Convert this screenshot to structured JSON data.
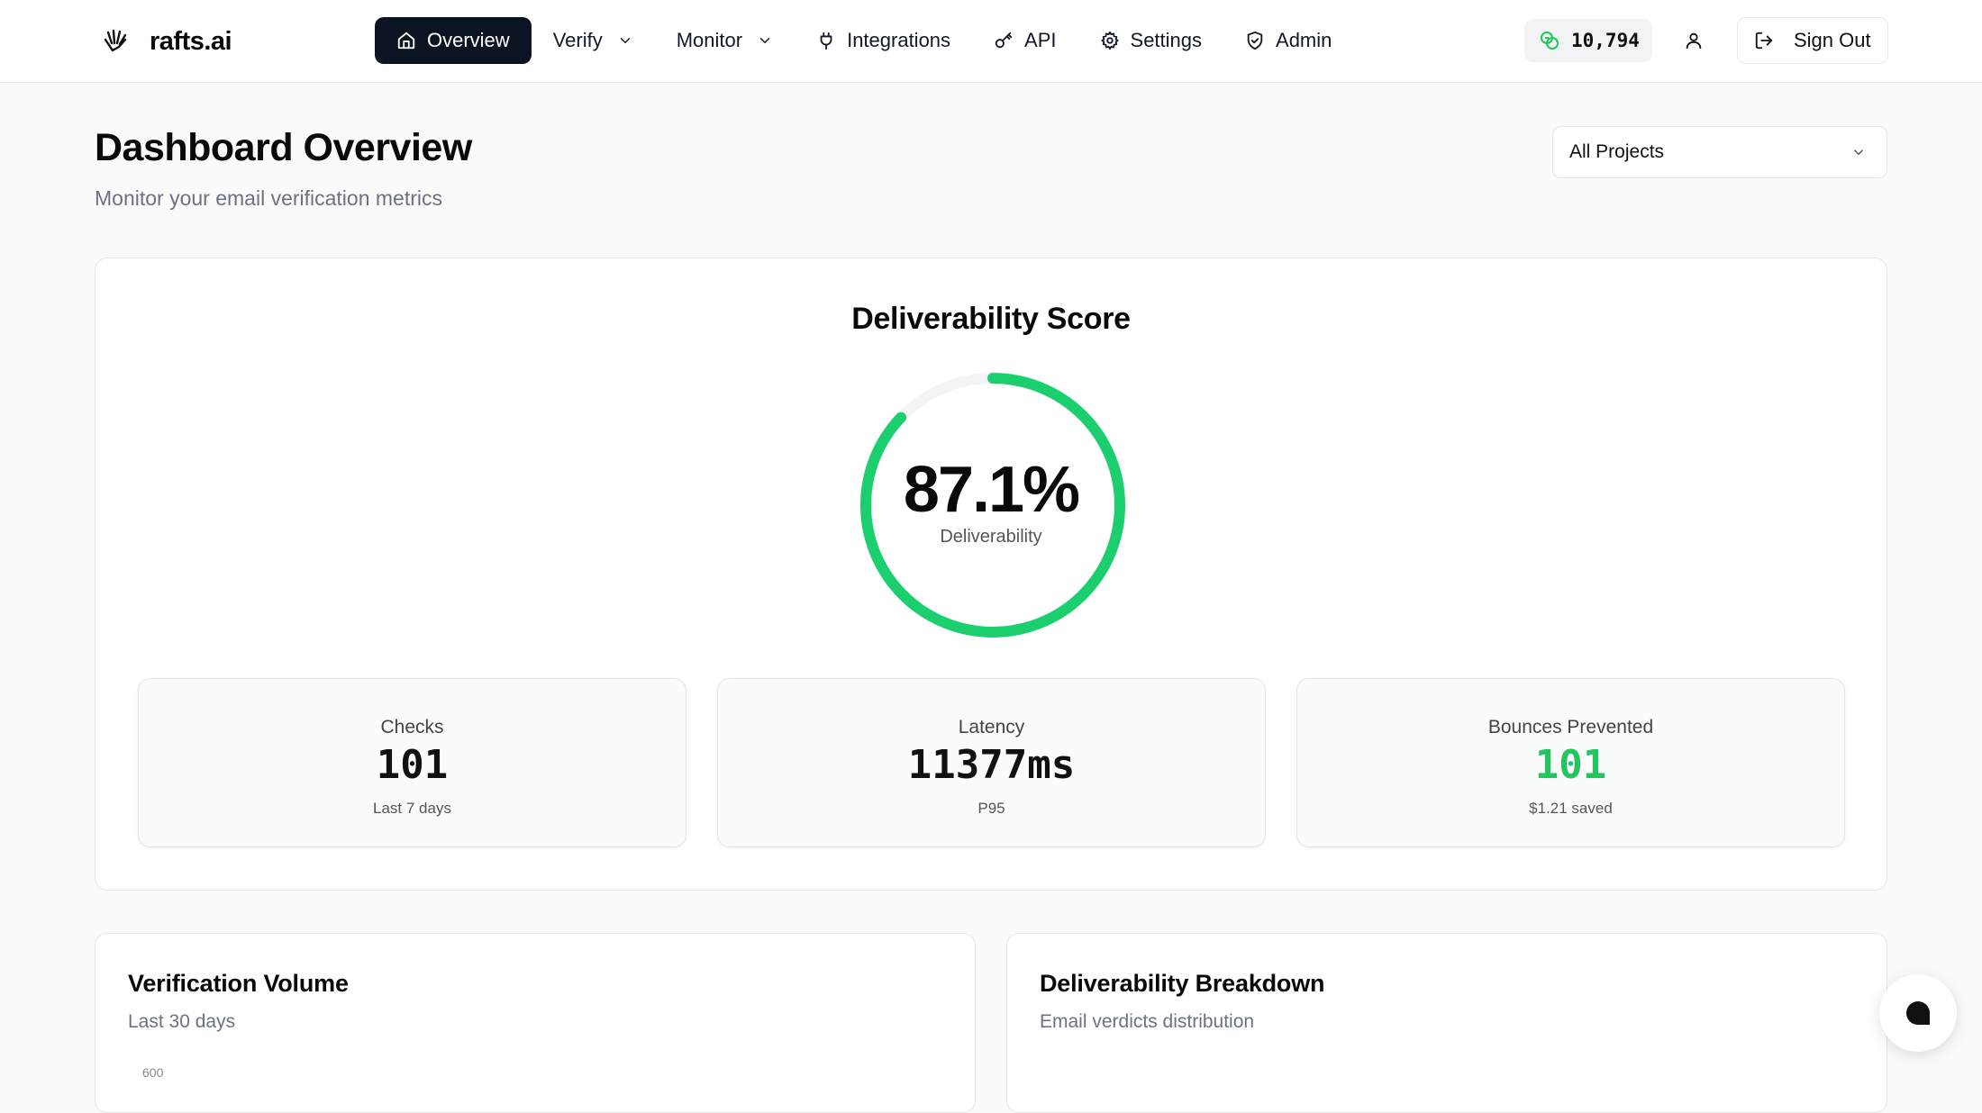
{
  "brand": {
    "name": "rafts.ai",
    "icon": "hand-logo-icon"
  },
  "nav": {
    "items": [
      {
        "label": "Overview",
        "icon": "home-icon",
        "active": true
      },
      {
        "label": "Verify",
        "icon": "",
        "dropdown": true
      },
      {
        "label": "Monitor",
        "icon": "",
        "dropdown": true
      },
      {
        "label": "Integrations",
        "icon": "plug-icon"
      },
      {
        "label": "API",
        "icon": "key-icon"
      },
      {
        "label": "Settings",
        "icon": "gear-icon"
      },
      {
        "label": "Admin",
        "icon": "shield-icon"
      }
    ]
  },
  "header": {
    "credits": "10,794",
    "credits_icon": "coins-icon",
    "sign_out_label": "Sign Out"
  },
  "page": {
    "title": "Dashboard Overview",
    "subtitle": "Monitor your email verification metrics",
    "project_select": "All Projects"
  },
  "score": {
    "title": "Deliverability Score",
    "value": "87.1%",
    "fraction": 0.871,
    "label": "Deliverability",
    "color": "#1ccf6e"
  },
  "stats": [
    {
      "label": "Checks",
      "value": "101",
      "sub": "Last 7 days"
    },
    {
      "label": "Latency",
      "value": "11377ms",
      "sub": "P95"
    },
    {
      "label": "Bounces Prevented",
      "value": "101",
      "sub": "$1.21 saved"
    }
  ],
  "panels": {
    "volume": {
      "title": "Verification Volume",
      "subtitle": "Last 30 days",
      "first_tick": "600"
    },
    "breakdown": {
      "title": "Deliverability Breakdown",
      "subtitle": "Email verdicts distribution"
    }
  }
}
